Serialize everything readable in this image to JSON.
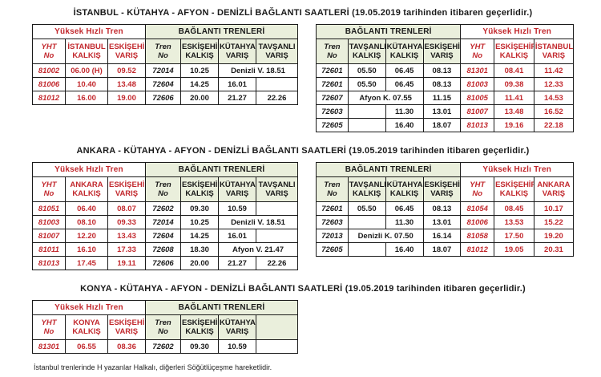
{
  "colors": {
    "accent_red": "#C2282D",
    "header_green": "#EAEFDC",
    "border": "#1a1a1a"
  },
  "footnote": "İstanbul trenlerinde H yazanlar Halkalı, diğerleri Söğütlüçeşme hareketlidir.",
  "sections": [
    {
      "id": "istanbul",
      "title": "İSTANBUL - KÜTAHYA - AFYON - DENİZLİ BAĞLANTI SAATLERİ (19.05.2019 tarihinden itibaren geçerlidir.)",
      "tables": [
        {
          "groups": [
            {
              "label": "Yüksek Hızlı Tren",
              "span": 3,
              "kind": "yht"
            },
            {
              "label": "BAĞLANTI TRENLERİ",
              "span": 4,
              "kind": "bag"
            }
          ],
          "columns": [
            {
              "label": "YHT\nNo",
              "kind": "yht",
              "no": true
            },
            {
              "label": "İSTANBUL\nKALKIŞ",
              "kind": "yht"
            },
            {
              "label": "ESKİŞEHİR\nVARIŞ",
              "kind": "yht"
            },
            {
              "label": "Tren\nNo",
              "kind": "bag",
              "no": true
            },
            {
              "label": "ESKİŞEHİR\nKALKIŞ",
              "kind": "bag"
            },
            {
              "label": "KÜTAHYA\nVARIŞ",
              "kind": "bag"
            },
            {
              "label": "TAVŞANLI\nVARIŞ",
              "kind": "bag"
            }
          ],
          "rows": [
            [
              "81002",
              "06.00 (H)",
              "09.52",
              "72014",
              "10.25",
              {
                "t": "Denizli V. 18.51",
                "span": 2
              }
            ],
            [
              "81006",
              "10.40",
              "13.48",
              "72604",
              "14.25",
              "16.01",
              ""
            ],
            [
              "81012",
              "16.00",
              "19.00",
              "72606",
              "20.00",
              "21.27",
              "22.26"
            ]
          ]
        },
        {
          "groups": [
            {
              "label": "BAĞLANTI TRENLERİ",
              "span": 4,
              "kind": "bag"
            },
            {
              "label": "Yüksek Hızlı Tren",
              "span": 3,
              "kind": "yht"
            }
          ],
          "columns": [
            {
              "label": "Tren\nNo",
              "kind": "bag",
              "no": true
            },
            {
              "label": "TAVŞANLI\nKALKIŞ",
              "kind": "bag"
            },
            {
              "label": "KÜTAHYA\nKALKIŞ",
              "kind": "bag"
            },
            {
              "label": "ESKİŞEHİR\nVARIŞ",
              "kind": "bag"
            },
            {
              "label": "YHT\nNo",
              "kind": "yht",
              "no": true
            },
            {
              "label": "ESKİŞEHİR\nKALKIŞ",
              "kind": "yht"
            },
            {
              "label": "İSTANBUL\nVARIŞ",
              "kind": "yht"
            }
          ],
          "rows": [
            [
              "72601",
              "05.50",
              "06.45",
              "08.13",
              "81301",
              "08.41",
              "11.42"
            ],
            [
              "72601",
              "05.50",
              "06.45",
              "08.13",
              "81003",
              "09.38",
              "12.33"
            ],
            [
              "72607",
              {
                "t": "Afyon K. 07.55",
                "span": 2
              },
              "11.15",
              "81005",
              "11.41",
              "14.53"
            ],
            [
              "72603",
              "",
              "11.30",
              "13.01",
              "81007",
              "13.48",
              "16.52"
            ],
            [
              "72605",
              "",
              "16.40",
              "18.07",
              "81013",
              "19.16",
              "22.18"
            ]
          ]
        }
      ]
    },
    {
      "id": "ankara",
      "title": "ANKARA - KÜTAHYA - AFYON - DENİZLİ BAĞLANTI SAATLERİ (19.05.2019 tarihinden itibaren geçerlidir.)",
      "tables": [
        {
          "groups": [
            {
              "label": "Yüksek Hızlı Tren",
              "span": 3,
              "kind": "yht"
            },
            {
              "label": "BAĞLANTI TRENLERİ",
              "span": 4,
              "kind": "bag"
            }
          ],
          "columns": [
            {
              "label": "YHT\nNo",
              "kind": "yht",
              "no": true
            },
            {
              "label": "ANKARA\nKALKIŞ",
              "kind": "yht"
            },
            {
              "label": "ESKİŞEHİR\nVARIŞ",
              "kind": "yht"
            },
            {
              "label": "Tren\nNo",
              "kind": "bag",
              "no": true
            },
            {
              "label": "ESKİŞEHİR\nKALKIŞ",
              "kind": "bag"
            },
            {
              "label": "KÜTAHYA\nVARIŞ",
              "kind": "bag"
            },
            {
              "label": "TAVŞANLI\nVARIŞ",
              "kind": "bag"
            }
          ],
          "rows": [
            [
              "81051",
              "06.40",
              "08.07",
              "72602",
              "09.30",
              "10.59",
              ""
            ],
            [
              "81003",
              "08.10",
              "09.33",
              "72014",
              "10.25",
              {
                "t": "Denizli V. 18.51",
                "span": 2
              }
            ],
            [
              "81007",
              "12.20",
              "13.43",
              "72604",
              "14.25",
              "16.01",
              ""
            ],
            [
              "81011",
              "16.10",
              "17.33",
              "72608",
              "18.30",
              {
                "t": "Afyon V. 21.47",
                "span": 2
              }
            ],
            [
              "81013",
              "17.45",
              "19.11",
              "72606",
              "20.00",
              "21.27",
              "22.26"
            ]
          ]
        },
        {
          "groups": [
            {
              "label": "BAĞLANTI TRENLERİ",
              "span": 4,
              "kind": "bag"
            },
            {
              "label": "Yüksek Hızlı Tren",
              "span": 3,
              "kind": "yht"
            }
          ],
          "columns": [
            {
              "label": "Tren\nNo",
              "kind": "bag",
              "no": true
            },
            {
              "label": "TAVŞANLI\nKALKIŞ",
              "kind": "bag"
            },
            {
              "label": "KÜTAHYA\nKALKIŞ",
              "kind": "bag"
            },
            {
              "label": "ESKİŞEHİR\nVARIŞ",
              "kind": "bag"
            },
            {
              "label": "YHT\nNo",
              "kind": "yht",
              "no": true
            },
            {
              "label": "ESKİŞEHİR\nKALKIŞ",
              "kind": "yht"
            },
            {
              "label": "ANKARA\nVARIŞ",
              "kind": "yht"
            }
          ],
          "rows": [
            [
              "72601",
              "05.50",
              "06.45",
              "08.13",
              "81054",
              "08.45",
              "10.17"
            ],
            [
              "72603",
              "",
              "11.30",
              "13.01",
              "81006",
              "13.53",
              "15.22"
            ],
            [
              "72013",
              {
                "t": "Denizli K. 07.50",
                "span": 2
              },
              "16.14",
              "81058",
              "17.50",
              "19.20"
            ],
            [
              "72605",
              "",
              "16.40",
              "18.07",
              "81012",
              "19.05",
              "20.31"
            ]
          ]
        }
      ]
    },
    {
      "id": "konya",
      "title": "KONYA - KÜTAHYA - AFYON - DENİZLİ BAĞLANTI SAATLERİ (19.05.2019 tarihinden itibaren geçerlidir.)",
      "tables": [
        {
          "groups": [
            {
              "label": "Yüksek Hızlı Tren",
              "span": 3,
              "kind": "yht"
            },
            {
              "label": "BAĞLANTI TRENLERİ",
              "span": 4,
              "kind": "bag"
            }
          ],
          "columns": [
            {
              "label": "YHT\nNo",
              "kind": "yht",
              "no": true
            },
            {
              "label": "KONYA\nKALKIŞ",
              "kind": "yht"
            },
            {
              "label": "ESKİŞEHİR\nVARIŞ",
              "kind": "yht"
            },
            {
              "label": "Tren\nNo",
              "kind": "bag",
              "no": true
            },
            {
              "label": "ESKİŞEHİR\nKALKIŞ",
              "kind": "bag"
            },
            {
              "label": "KÜTAHYA\nVARIŞ",
              "kind": "bag"
            },
            {
              "label": "",
              "kind": "bag"
            }
          ],
          "rows": [
            [
              "81301",
              "06.55",
              "08.36",
              "72602",
              "09.30",
              "10.59",
              ""
            ]
          ]
        }
      ]
    }
  ]
}
